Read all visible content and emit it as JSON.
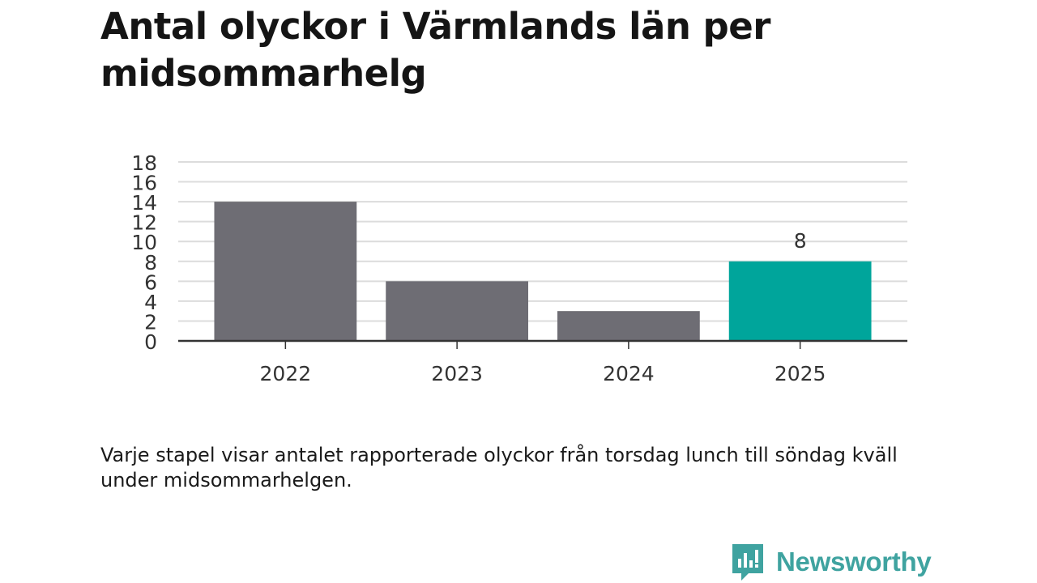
{
  "title": "Antal olyckor i Värmlands län per midsommarhelg",
  "caption": "Varje stapel visar antalet rapporterade olyckor från torsdag lunch till söndag kväll under midsommarhelgen.",
  "brand": {
    "name": "Newsworthy",
    "logo_icon": "bar-chart-speech-bubble-icon",
    "color": "#3fa3a0"
  },
  "chart_data": {
    "type": "bar",
    "categories": [
      "2022",
      "2023",
      "2024",
      "2025"
    ],
    "values": [
      14,
      6,
      3,
      8
    ],
    "highlight_index": 3,
    "data_labels": [
      null,
      null,
      null,
      "8"
    ],
    "ylim": [
      0,
      18
    ],
    "yticks": [
      0,
      2,
      4,
      6,
      8,
      10,
      12,
      14,
      16,
      18
    ],
    "grid": true,
    "colors": {
      "bar": "#6e6d74",
      "highlight": "#00a59b",
      "grid": "#dcdcdc",
      "axis": "#333333"
    }
  }
}
